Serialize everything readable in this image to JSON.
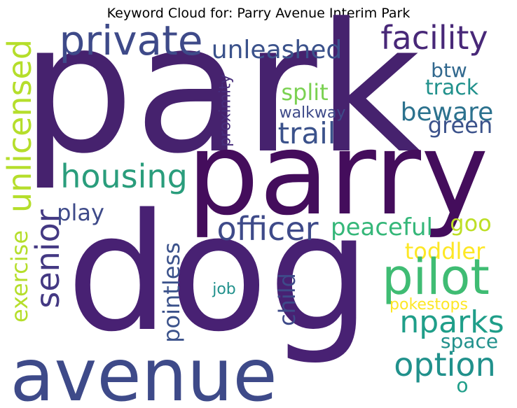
{
  "title": "Keyword Cloud for: Parry Avenue Interim Park",
  "words": [
    {
      "text": "park",
      "color": "#46226e"
    },
    {
      "text": "dog",
      "color": "#482173"
    },
    {
      "text": "parry",
      "color": "#440d5c"
    },
    {
      "text": "avenue",
      "color": "#3e4a89"
    },
    {
      "text": "private",
      "color": "#3e4a89"
    },
    {
      "text": "unleashed",
      "color": "#3b528b"
    },
    {
      "text": "facility",
      "color": "#482878"
    },
    {
      "text": "btw",
      "color": "#31688e"
    },
    {
      "text": "track",
      "color": "#21918c"
    },
    {
      "text": "split",
      "color": "#7ad151"
    },
    {
      "text": "beware",
      "color": "#2c728e"
    },
    {
      "text": "green",
      "color": "#3b528b"
    },
    {
      "text": "walkway",
      "color": "#3e4a89"
    },
    {
      "text": "trail",
      "color": "#3b528b"
    },
    {
      "text": "proximity",
      "color": "#472d7b"
    },
    {
      "text": "unlicensed",
      "color": "#b5de2b"
    },
    {
      "text": "housing",
      "color": "#2a9d7c"
    },
    {
      "text": "play",
      "color": "#3e4a89"
    },
    {
      "text": "senior",
      "color": "#443983"
    },
    {
      "text": "exercise",
      "color": "#b5de2b"
    },
    {
      "text": "officer",
      "color": "#3e4a89"
    },
    {
      "text": "peaceful",
      "color": "#35b779"
    },
    {
      "text": "goo",
      "color": "#bddf26"
    },
    {
      "text": "toddler",
      "color": "#fde725"
    },
    {
      "text": "pointless",
      "color": "#3b528b"
    },
    {
      "text": "pilot",
      "color": "#3fbc73"
    },
    {
      "text": "job",
      "color": "#21918c"
    },
    {
      "text": "child",
      "color": "#3e4a89"
    },
    {
      "text": "pokestops",
      "color": "#fde725"
    },
    {
      "text": "nparks",
      "color": "#1f9e89"
    },
    {
      "text": "space",
      "color": "#21918c"
    },
    {
      "text": "option",
      "color": "#21918c"
    },
    {
      "text": "o",
      "color": "#1f9e89"
    }
  ]
}
